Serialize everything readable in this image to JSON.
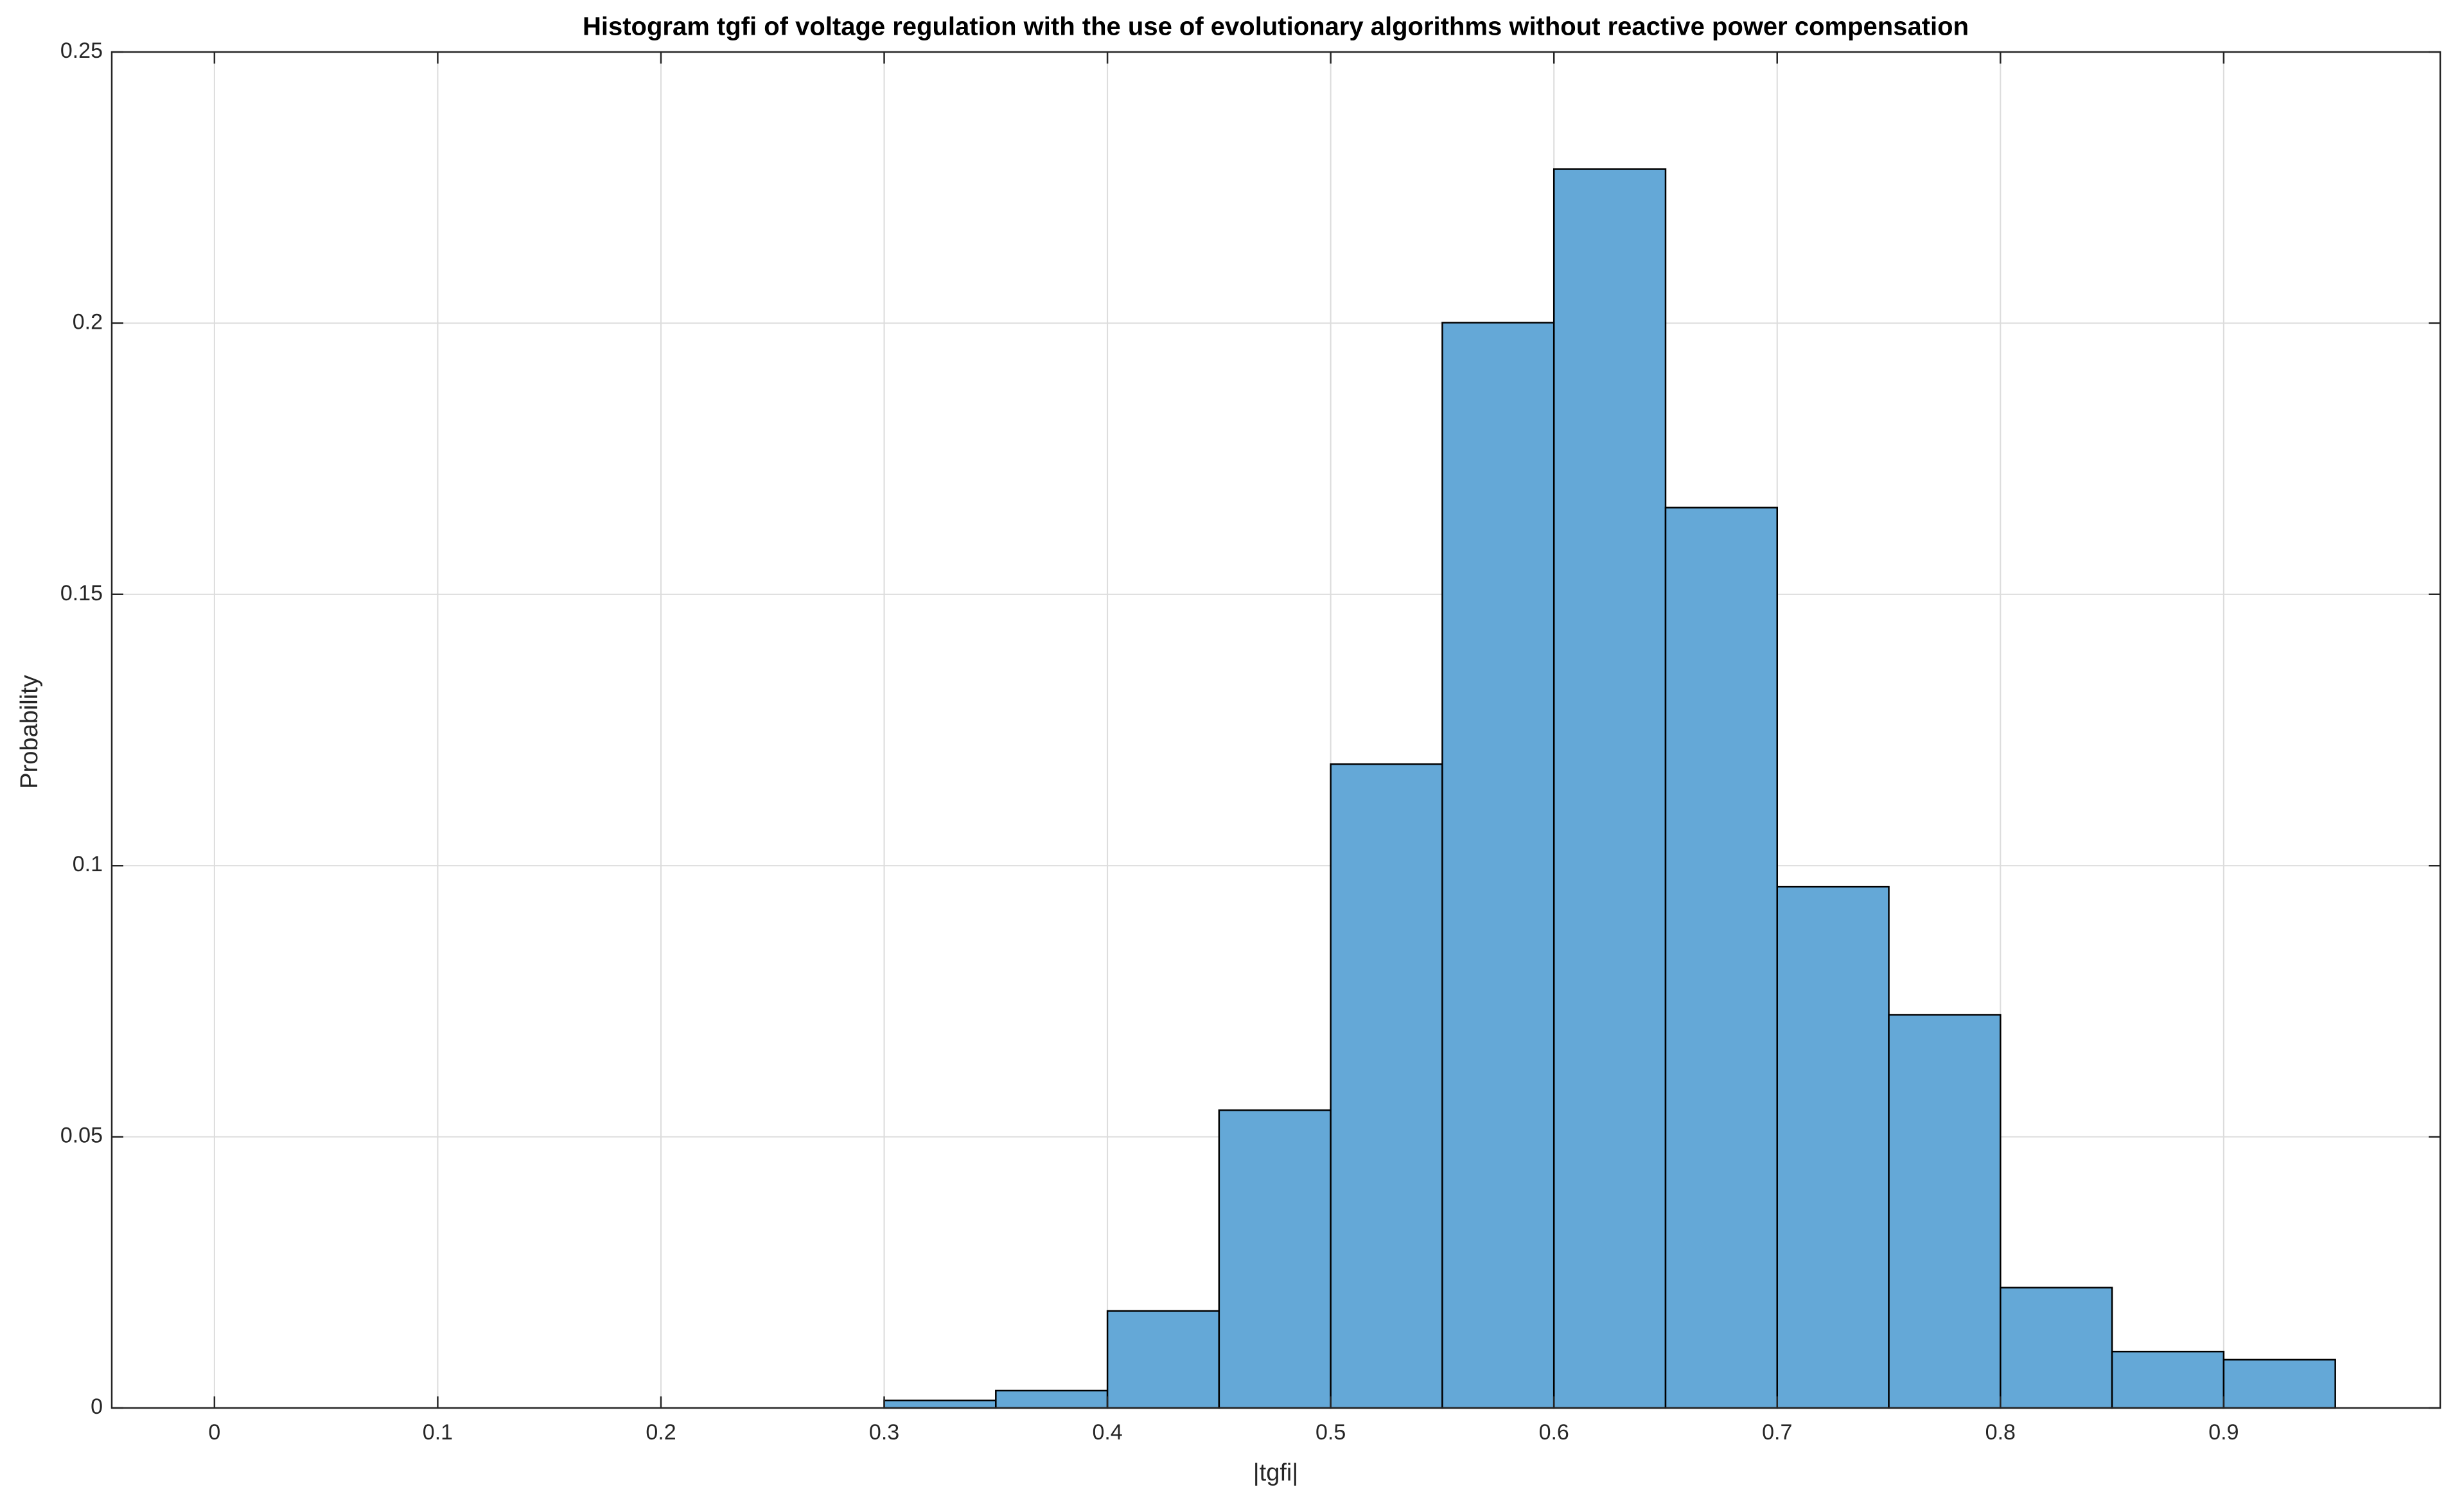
{
  "chart_data": {
    "type": "histogram",
    "title": "Histogram tgfi of voltage regulation with the use of evolutionary algorithms without reactive power compensation",
    "xlabel": "|tgfi|",
    "ylabel": "Probability",
    "bins": [
      0.3,
      0.35,
      0.4,
      0.45,
      0.5,
      0.55,
      0.6,
      0.65,
      0.7,
      0.75,
      0.8,
      0.85,
      0.9,
      0.95
    ],
    "values": [
      0.0014,
      0.0032,
      0.0179,
      0.0549,
      0.1187,
      0.2001,
      0.2284,
      0.166,
      0.0961,
      0.0725,
      0.0222,
      0.0104,
      0.0089
    ],
    "color": "#64a8d7",
    "xlim": [
      -0.046,
      0.997
    ],
    "ylim": [
      0,
      0.25
    ],
    "xticks": [
      0,
      0.1,
      0.2,
      0.3,
      0.4,
      0.5,
      0.6,
      0.7,
      0.8,
      0.9
    ],
    "yticks": [
      0,
      0.05,
      0.1,
      0.15,
      0.2,
      0.25
    ],
    "grid": true
  }
}
